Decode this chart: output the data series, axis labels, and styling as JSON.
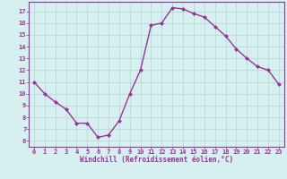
{
  "x": [
    0,
    1,
    2,
    3,
    4,
    5,
    6,
    7,
    8,
    9,
    10,
    11,
    12,
    13,
    14,
    15,
    16,
    17,
    18,
    19,
    20,
    21,
    22,
    23
  ],
  "y": [
    11,
    10,
    9.3,
    8.7,
    7.5,
    7.5,
    6.3,
    6.5,
    7.7,
    10,
    12,
    15.8,
    16,
    17.3,
    17.2,
    16.8,
    16.5,
    15.7,
    14.9,
    13.8,
    13,
    12.3,
    12,
    10.8
  ],
  "line_color": "#993399",
  "marker": "D",
  "marker_size": 2,
  "bg_color": "#d6f0f0",
  "grid_color": "#b8d8d8",
  "xlabel": "Windchill (Refroidissement éolien,°C)",
  "xlabel_color": "#993399",
  "tick_color": "#993399",
  "spine_color": "#993399",
  "xlim": [
    -0.5,
    23.5
  ],
  "ylim": [
    5.5,
    17.8
  ],
  "yticks": [
    6,
    7,
    8,
    9,
    10,
    11,
    12,
    13,
    14,
    15,
    16,
    17
  ],
  "xticks": [
    0,
    1,
    2,
    3,
    4,
    5,
    6,
    7,
    8,
    9,
    10,
    11,
    12,
    13,
    14,
    15,
    16,
    17,
    18,
    19,
    20,
    21,
    22,
    23
  ],
  "linewidth": 1.0,
  "tick_fontsize": 5.0,
  "xlabel_fontsize": 5.5
}
